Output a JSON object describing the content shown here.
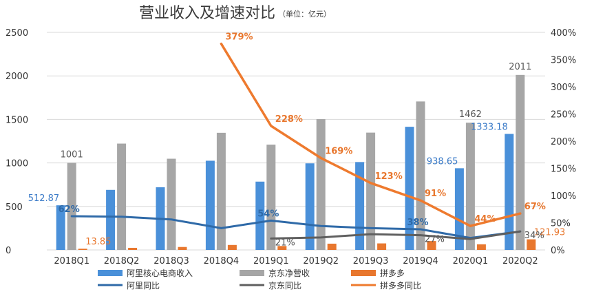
{
  "title": "营业收入及增速对比",
  "unit": "（单位：亿元）",
  "chart_data": {
    "type": "bar+line",
    "categories": [
      "2018Q1",
      "2018Q2",
      "2018Q3",
      "2018Q4",
      "2019Q1",
      "2019Q2",
      "2019Q3",
      "2019Q4",
      "2020Q1",
      "2020Q2"
    ],
    "left_axis": {
      "ylim": [
        0,
        2500
      ],
      "ticks": [
        "0",
        "500",
        "1000",
        "1500",
        "2000",
        "2500"
      ]
    },
    "right_axis": {
      "ylim": [
        0,
        400
      ],
      "ticks": [
        "0%",
        "50%",
        "100%",
        "150%",
        "200%",
        "250%",
        "300%",
        "350%",
        "400%"
      ]
    },
    "grid": true,
    "legend_position": "bottom",
    "bar_series": [
      {
        "name": "阿里核心电商收入",
        "color": "#4a90d9",
        "values": [
          512.87,
          690,
          720,
          1025,
          785,
          995,
          1010,
          1415,
          938.65,
          1333.18
        ]
      },
      {
        "name": "京东净营收",
        "color": "#a6a6a6",
        "values": [
          1001,
          1222,
          1048,
          1346,
          1210,
          1503,
          1348,
          1706,
          1462,
          2011
        ]
      },
      {
        "name": "拼多多",
        "color": "#e8772e",
        "values": [
          13.85,
          24,
          34,
          57,
          45,
          72,
          75,
          102,
          65,
          121.93
        ]
      }
    ],
    "line_series": [
      {
        "name": "阿里同比",
        "color": "#2f6aa8",
        "values": [
          62,
          61,
          56,
          40,
          54,
          44,
          40,
          38,
          22,
          34
        ]
      },
      {
        "name": "京东同比",
        "color": "#5f5f5f",
        "values": [
          null,
          null,
          null,
          null,
          21,
          23,
          29,
          27,
          20,
          34
        ]
      },
      {
        "name": "拼多多同比",
        "color": "#ee7a2e",
        "values": [
          null,
          null,
          null,
          379,
          228,
          169,
          123,
          91,
          44,
          67
        ]
      }
    ],
    "annotations": {
      "ali_bar": [
        {
          "index": 0,
          "text": "512.87"
        },
        {
          "index": 8,
          "text": "938.65"
        },
        {
          "index": 9,
          "text": "1333.18"
        }
      ],
      "jd_bar": [
        {
          "index": 0,
          "text": "1001"
        },
        {
          "index": 8,
          "text": "1462"
        },
        {
          "index": 9,
          "text": "2011"
        }
      ],
      "pdd_bar": [
        {
          "index": 0,
          "text": "13.85"
        },
        {
          "index": 9,
          "text": "121.93"
        }
      ],
      "ali_line": [
        {
          "index": 0,
          "text": "62%"
        },
        {
          "index": 4,
          "text": "54%"
        },
        {
          "index": 7,
          "text": "38%"
        }
      ],
      "jd_line": [
        {
          "index": 4,
          "text": "21%"
        },
        {
          "index": 7,
          "text": "27%"
        },
        {
          "index": 9,
          "text": "34%"
        }
      ],
      "pdd_line": [
        {
          "index": 3,
          "text": "379%"
        },
        {
          "index": 4,
          "text": "228%"
        },
        {
          "index": 5,
          "text": "169%"
        },
        {
          "index": 6,
          "text": "123%"
        },
        {
          "index": 7,
          "text": "91%"
        },
        {
          "index": 8,
          "text": "44%"
        },
        {
          "index": 9,
          "text": "67%"
        }
      ]
    }
  }
}
